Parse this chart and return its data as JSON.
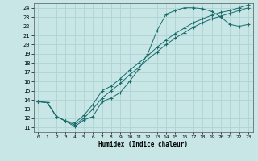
{
  "xlabel": "Humidex (Indice chaleur)",
  "bg_color": "#c8e6e6",
  "grid_color": "#aed4d4",
  "line_color": "#1a6b6b",
  "xlim": [
    -0.5,
    23.5
  ],
  "ylim": [
    10.5,
    24.5
  ],
  "xticks": [
    0,
    1,
    2,
    3,
    4,
    5,
    6,
    7,
    8,
    9,
    10,
    11,
    12,
    13,
    14,
    15,
    16,
    17,
    18,
    19,
    20,
    21,
    22,
    23
  ],
  "yticks": [
    11,
    12,
    13,
    14,
    15,
    16,
    17,
    18,
    19,
    20,
    21,
    22,
    23,
    24
  ],
  "curves": [
    {
      "x": [
        0,
        1,
        2,
        3,
        4,
        5,
        6,
        7,
        8,
        9,
        10,
        11,
        12,
        13,
        14,
        15,
        16,
        17,
        18,
        19,
        20,
        21,
        22,
        23
      ],
      "y": [
        13.8,
        13.7,
        12.2,
        11.7,
        11.1,
        11.8,
        12.2,
        13.8,
        14.2,
        14.8,
        16.0,
        17.3,
        19.0,
        21.5,
        23.3,
        23.7,
        24.0,
        24.0,
        23.9,
        23.6,
        23.0,
        22.2,
        22.0,
        22.2
      ]
    },
    {
      "x": [
        0,
        1,
        2,
        3,
        4,
        5,
        6,
        7,
        8,
        9,
        10,
        11,
        12,
        13,
        14,
        15,
        16,
        17,
        18,
        19,
        20,
        21,
        22,
        23
      ],
      "y": [
        13.8,
        13.7,
        12.2,
        11.7,
        11.3,
        12.0,
        13.0,
        14.2,
        15.0,
        15.8,
        16.7,
        17.5,
        18.4,
        19.2,
        20.0,
        20.7,
        21.3,
        21.9,
        22.4,
        22.8,
        23.1,
        23.4,
        23.7,
        24.0
      ]
    },
    {
      "x": [
        0,
        1,
        2,
        3,
        4,
        5,
        6,
        7,
        8,
        9,
        10,
        11,
        12,
        13,
        14,
        15,
        16,
        17,
        18,
        19,
        20,
        21,
        22,
        23
      ],
      "y": [
        13.8,
        13.7,
        12.2,
        11.7,
        11.5,
        12.3,
        13.5,
        15.0,
        15.5,
        16.3,
        17.2,
        18.0,
        18.8,
        19.7,
        20.5,
        21.2,
        21.8,
        22.4,
        22.8,
        23.2,
        23.5,
        23.7,
        24.0,
        24.3
      ]
    }
  ]
}
